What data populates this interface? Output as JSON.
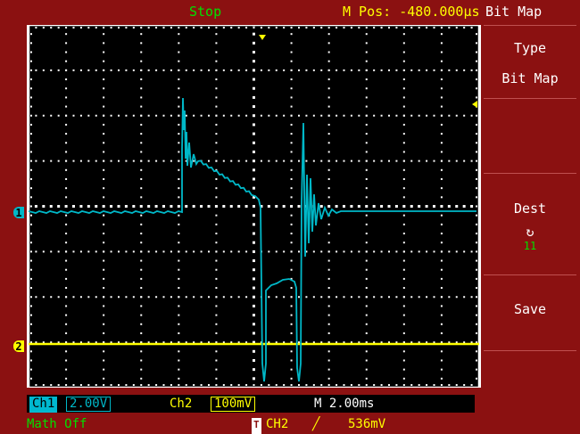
{
  "top": {
    "status": "Stop",
    "mpos": "M Pos: -480.000µs",
    "menu_title": "Bit  Map"
  },
  "menu": {
    "type_label": "Type",
    "type_value": "Bit  Map",
    "dest_label": "Dest",
    "dest_icon": "↻",
    "dest_value": "11",
    "save_label": "Save"
  },
  "bottom": {
    "ch1_label": "Ch1",
    "ch1_scale": "2.00V",
    "ch2_label": "Ch2",
    "ch2_scale": "100mV",
    "timebase": "M 2.00ms",
    "math": "Math  Off",
    "trigger_tag": "T",
    "trigger_src": "CH2",
    "trigger_slope": "╱",
    "trigger_level": "536mV"
  },
  "markers": {
    "ch1": "1",
    "ch2": "2"
  },
  "colors": {
    "ch1": "#00b8c8",
    "ch2": "#ffff00",
    "frame": "#8b1111",
    "status_green": "#00e000"
  }
}
